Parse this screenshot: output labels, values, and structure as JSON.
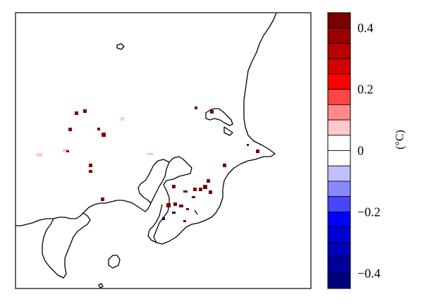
{
  "colorbar": {
    "unit": "(°C)",
    "ticks": [
      {
        "value": 0.4,
        "label": "0.4"
      },
      {
        "value": 0.2,
        "label": "0.2"
      },
      {
        "value": 0,
        "label": "0"
      },
      {
        "value": -0.2,
        "label": "−0.2"
      },
      {
        "value": -0.4,
        "label": "−0.4"
      }
    ],
    "range": [
      -0.45,
      0.45
    ],
    "bins": [
      {
        "from": 0.4,
        "to": 0.45,
        "color": "#7a0000"
      },
      {
        "from": 0.35,
        "to": 0.4,
        "color": "#990000"
      },
      {
        "from": 0.3,
        "to": 0.35,
        "color": "#b80000"
      },
      {
        "from": 0.25,
        "to": 0.3,
        "color": "#d60000"
      },
      {
        "from": 0.2,
        "to": 0.25,
        "color": "#ff0000"
      },
      {
        "from": 0.15,
        "to": 0.2,
        "color": "#ff4646"
      },
      {
        "from": 0.1,
        "to": 0.15,
        "color": "#ff8888"
      },
      {
        "from": 0.05,
        "to": 0.1,
        "color": "#ffc8c8"
      },
      {
        "from": 0.0,
        "to": 0.05,
        "color": "#ffffff"
      },
      {
        "from": -0.05,
        "to": 0.0,
        "color": "#ffffff"
      },
      {
        "from": -0.1,
        "to": -0.05,
        "color": "#c0c0ff"
      },
      {
        "from": -0.15,
        "to": -0.1,
        "color": "#8888ff"
      },
      {
        "from": -0.2,
        "to": -0.15,
        "color": "#4646ff"
      },
      {
        "from": -0.25,
        "to": -0.2,
        "color": "#0000ff"
      },
      {
        "from": -0.3,
        "to": -0.25,
        "color": "#0000d6"
      },
      {
        "from": -0.35,
        "to": -0.3,
        "color": "#0000b8"
      },
      {
        "from": -0.4,
        "to": -0.35,
        "color": "#000099"
      },
      {
        "from": -0.45,
        "to": -0.4,
        "color": "#00007a"
      }
    ]
  },
  "map": {
    "cells": [
      {
        "value": 0.42
      },
      {
        "value": 0.42
      },
      {
        "value": 0.42
      },
      {
        "value": 0.42
      },
      {
        "value": 0.42
      },
      {
        "value": 0.07
      },
      {
        "value": 0.07
      },
      {
        "value": 0.07
      },
      {
        "value": 0.07
      },
      {
        "value": 0.42
      },
      {
        "value": 0.42
      },
      {
        "value": 0.42
      },
      {
        "value": 0.42
      },
      {
        "value": 0.42
      },
      {
        "value": 0.42
      },
      {
        "value": 0.42
      },
      {
        "value": 0.42
      },
      {
        "value": 0.42
      },
      {
        "value": 0.42
      },
      {
        "value": 0.42
      },
      {
        "value": 0.42
      },
      {
        "value": 0.42
      },
      {
        "value": 0.42
      },
      {
        "value": 0.42
      },
      {
        "value": 0.42
      },
      {
        "value": 0.42
      },
      {
        "value": 0.42
      },
      {
        "value": 0.42
      },
      {
        "value": 0.42
      },
      {
        "value": 0.42
      },
      {
        "value": 0.42
      },
      {
        "value": -0.42
      },
      {
        "value": -0.42
      }
    ]
  }
}
